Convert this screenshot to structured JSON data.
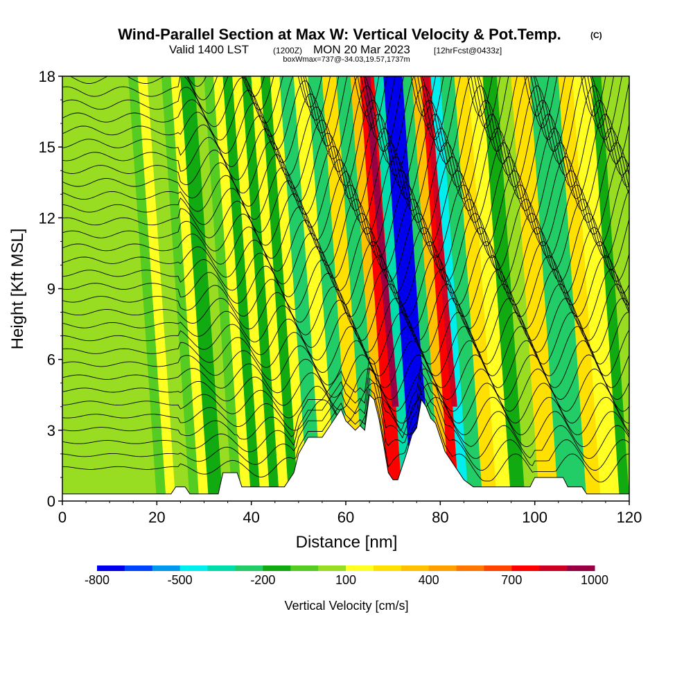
{
  "title": {
    "main": "Wind-Parallel Section at Max W: Vertical Velocity & Pot.Temp.",
    "main_suffix": "(C)",
    "sub_prefix": "Valid 1400 LST",
    "sub_utc": "(1200Z)",
    "sub_date": "MON 20 Mar 2023",
    "sub_fcst": "[12hrFcst@0433z]",
    "note": "boxWmax=737@-34.03,19.57,1737m"
  },
  "chart_data": {
    "type": "heatmap",
    "xlabel": "Distance [nm]",
    "ylabel": "Height [Kft MSL]",
    "xlim": [
      0,
      120
    ],
    "ylim": [
      0,
      18
    ],
    "x_ticks": [
      "0",
      "20",
      "40",
      "60",
      "80",
      "100",
      "120"
    ],
    "y_ticks": [
      "0",
      "3",
      "6",
      "9",
      "12",
      "15",
      "18"
    ],
    "colorbar": {
      "label": "Vertical Velocity [cm/s]",
      "tick_labels": [
        "-800",
        "-500",
        "-200",
        "100",
        "400",
        "700",
        "1000"
      ],
      "levels": [
        -800,
        -700,
        -600,
        -500,
        -400,
        -300,
        -200,
        -100,
        0,
        100,
        200,
        300,
        400,
        500,
        600,
        700,
        800,
        900,
        1000
      ],
      "colors": [
        "#0000ee",
        "#0044ff",
        "#0099ee",
        "#00eeee",
        "#00ddaa",
        "#22cc66",
        "#11aa11",
        "#55cc22",
        "#99dd22",
        "#ffff22",
        "#ffe000",
        "#ffc000",
        "#ffa000",
        "#ff7700",
        "#ff4400",
        "#ff0000",
        "#cc0022",
        "#990044"
      ]
    },
    "vertical_velocity_cells": {
      "description_levels": "strongest updraft near 83 nm and 71 nm, strongest downdraft near 76 nm, max boxW 737 cm/s",
      "columns": [
        {
          "x": [
            0,
            8
          ],
          "w": 0
        },
        {
          "x": [
            8,
            10
          ],
          "w": 50
        },
        {
          "x": [
            10,
            20
          ],
          "w": 0
        },
        {
          "x": [
            20,
            22
          ],
          "w": -80
        },
        {
          "x": [
            22,
            24
          ],
          "w": 120
        },
        {
          "x": [
            24,
            27
          ],
          "w": 0
        },
        {
          "x": [
            27,
            29
          ],
          "w": -60
        },
        {
          "x": [
            29,
            31
          ],
          "w": 110
        },
        {
          "x": [
            31,
            34
          ],
          "w": -120
        },
        {
          "x": [
            34,
            36
          ],
          "w": 60
        },
        {
          "x": [
            36,
            38
          ],
          "w": -90
        },
        {
          "x": [
            38,
            40
          ],
          "w": 120
        },
        {
          "x": [
            40,
            42
          ],
          "w": -140
        },
        {
          "x": [
            42,
            44
          ],
          "w": 140
        },
        {
          "x": [
            44,
            46
          ],
          "w": -160
        },
        {
          "x": [
            46,
            48
          ],
          "w": 130
        },
        {
          "x": [
            48,
            50
          ],
          "w": -180
        },
        {
          "x": [
            50,
            52
          ],
          "w": 150
        },
        {
          "x": [
            52,
            55
          ],
          "w": -220
        },
        {
          "x": [
            55,
            58
          ],
          "w": 120
        },
        {
          "x": [
            58,
            61
          ],
          "w": -260
        },
        {
          "x": [
            61,
            64
          ],
          "w": 250
        },
        {
          "x": [
            64,
            67
          ],
          "w": -220
        },
        {
          "x": [
            67,
            69
          ],
          "w": 380
        },
        {
          "x": [
            69,
            72
          ],
          "w": 737
        },
        {
          "x": [
            72,
            74
          ],
          "w": -350
        },
        {
          "x": [
            74,
            78
          ],
          "w": -780
        },
        {
          "x": [
            78,
            80
          ],
          "w": -300
        },
        {
          "x": [
            80,
            82
          ],
          "w": 300
        },
        {
          "x": [
            82,
            84
          ],
          "w": 737
        },
        {
          "x": [
            84,
            86
          ],
          "w": -450
        },
        {
          "x": [
            86,
            89
          ],
          "w": -250
        },
        {
          "x": [
            89,
            92
          ],
          "w": 200
        },
        {
          "x": [
            92,
            95
          ],
          "w": 120
        },
        {
          "x": [
            95,
            98
          ],
          "w": -150
        },
        {
          "x": [
            98,
            101
          ],
          "w": 80
        },
        {
          "x": [
            101,
            105
          ],
          "w": 200
        },
        {
          "x": [
            105,
            108
          ],
          "w": -220
        },
        {
          "x": [
            108,
            111
          ],
          "w": -260
        },
        {
          "x": [
            111,
            114
          ],
          "w": 220
        },
        {
          "x": [
            114,
            118
          ],
          "w": 150
        },
        {
          "x": [
            118,
            120
          ],
          "w": -120
        }
      ]
    },
    "terrain_top_kft": [
      [
        0,
        0.3
      ],
      [
        23,
        0.3
      ],
      [
        24,
        0.6
      ],
      [
        26,
        0.6
      ],
      [
        27,
        0.3
      ],
      [
        33,
        0.3
      ],
      [
        34,
        1.2
      ],
      [
        37,
        1.2
      ],
      [
        38,
        0.6
      ],
      [
        47,
        0.6
      ],
      [
        49,
        1.2
      ],
      [
        50,
        2.0
      ],
      [
        52,
        2.7
      ],
      [
        55,
        2.7
      ],
      [
        57,
        3.3
      ],
      [
        59,
        3.9
      ],
      [
        60,
        3.4
      ],
      [
        62,
        3.0
      ],
      [
        63,
        3.2
      ],
      [
        64,
        3.0
      ],
      [
        65,
        4.5
      ],
      [
        66,
        4.3
      ],
      [
        67,
        3.5
      ],
      [
        68,
        2.4
      ],
      [
        69,
        1.2
      ],
      [
        70,
        0.9
      ],
      [
        71,
        0.9
      ],
      [
        72,
        1.5
      ],
      [
        73,
        2.1
      ],
      [
        74,
        2.8
      ],
      [
        75,
        3.1
      ],
      [
        76,
        4.3
      ],
      [
        77,
        4.0
      ],
      [
        78,
        3.5
      ],
      [
        79,
        3.3
      ],
      [
        80,
        2.7
      ],
      [
        81,
        2.1
      ],
      [
        83,
        1.5
      ],
      [
        85,
        0.9
      ],
      [
        87,
        0.6
      ],
      [
        89,
        0.6
      ],
      [
        91,
        0.6
      ],
      [
        99,
        0.6
      ],
      [
        100,
        1.0
      ],
      [
        106,
        1.0
      ],
      [
        107,
        0.6
      ],
      [
        110,
        0.6
      ],
      [
        111,
        0.3
      ],
      [
        120,
        0.3
      ]
    ],
    "isentropes_count": 32
  }
}
